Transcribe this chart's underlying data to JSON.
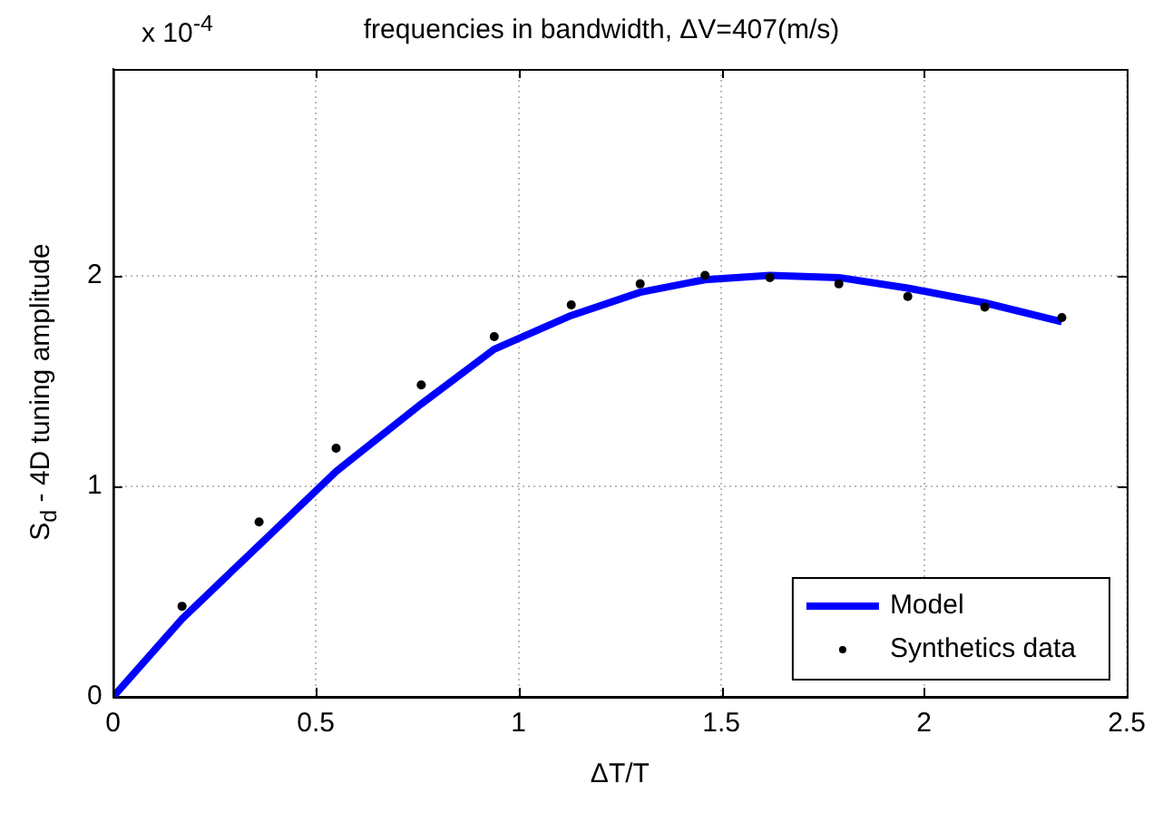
{
  "chart_data": {
    "type": "line",
    "title": "frequencies in bandwidth, ΔV=407(m/s)",
    "xlabel": "ΔT/T",
    "ylabel": "S$_{d}$ - 4D tuning amplitude",
    "annotations": [
      "x 10$^{-4}$"
    ],
    "xlim": [
      0,
      2.5
    ],
    "xticks": [
      0,
      0.5,
      1,
      1.5,
      2,
      2.5
    ],
    "ylim": [
      0,
      2.98
    ],
    "yticks": [
      0,
      1,
      2
    ],
    "grid": true,
    "legend": "bottom right",
    "series": [
      {
        "name": "Model",
        "color": "#0000ff",
        "marker": "none",
        "line_style": "solid",
        "x": [
          0,
          0.17,
          0.36,
          0.55,
          0.76,
          0.94,
          1.13,
          1.3,
          1.46,
          1.62,
          1.79,
          1.96,
          2.15,
          2.34
        ],
        "values": [
          0,
          0.37,
          0.72,
          1.07,
          1.39,
          1.65,
          1.81,
          1.92,
          1.98,
          2.0,
          1.99,
          1.94,
          1.87,
          1.78
        ]
      },
      {
        "name": "Synthetics data",
        "type": "scatter",
        "color": "#000000",
        "marker": "circle",
        "x": [
          0.17,
          0.36,
          0.55,
          0.76,
          0.94,
          1.13,
          1.3,
          1.46,
          1.62,
          1.79,
          1.96,
          2.15,
          2.34
        ],
        "values": [
          0.43,
          0.83,
          1.18,
          1.48,
          1.71,
          1.86,
          1.96,
          2.0,
          1.99,
          1.96,
          1.9,
          1.85,
          1.8
        ]
      }
    ]
  }
}
